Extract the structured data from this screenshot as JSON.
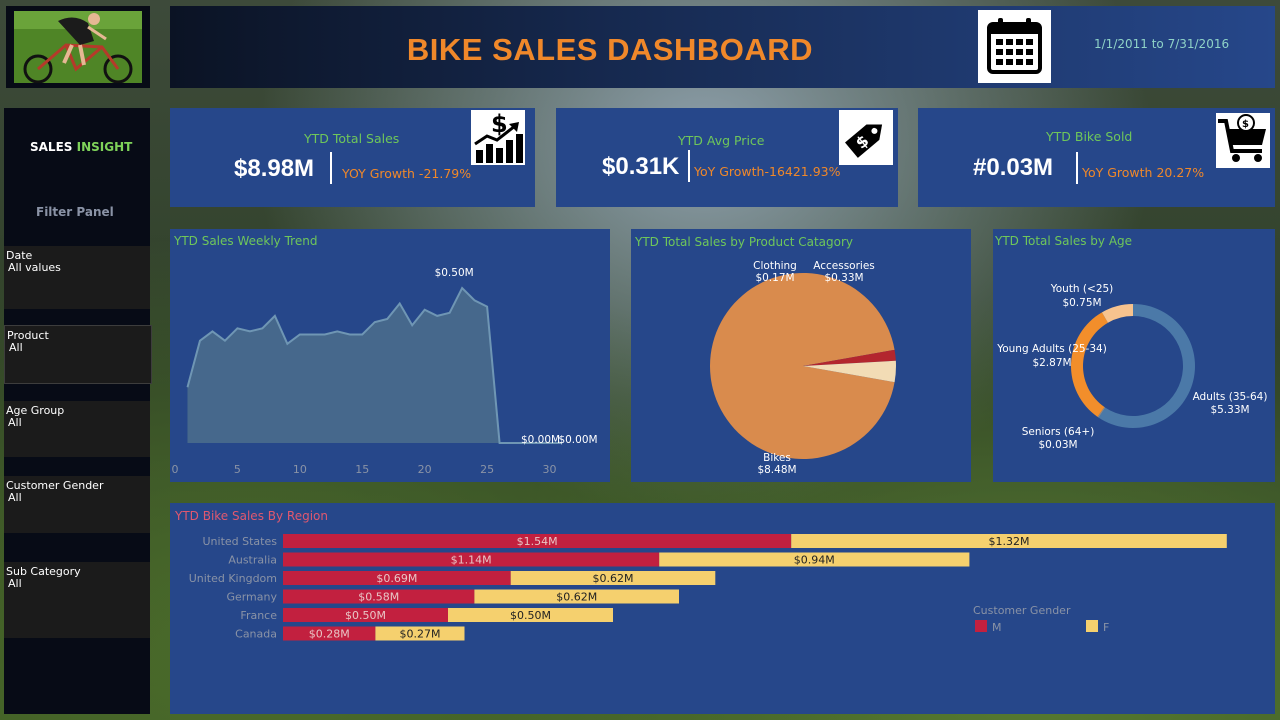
{
  "header": {
    "title": "BIKE SALES DASHBOARD",
    "date_range": "1/1/2011 to 7/31/2016"
  },
  "sidebar": {
    "insight_a": "SALES",
    "insight_b": "INSIGHT",
    "filter_panel": "Filter Panel",
    "filters": [
      {
        "label": "Date",
        "value": "All values"
      },
      {
        "label": "Product",
        "value": "All"
      },
      {
        "label": "Age Group",
        "value": "All"
      },
      {
        "label": "Customer Gender",
        "value": "All"
      },
      {
        "label": "Sub Category",
        "value": "All"
      }
    ]
  },
  "kpis": [
    {
      "title": "YTD Total Sales",
      "value": "$8.98M",
      "yoy": "YOY Growth -21.79%",
      "icon": "money-growth-icon"
    },
    {
      "title": "YTD Avg Price",
      "value": "$0.31K",
      "yoy": "YoY Growth-16421.93%",
      "icon": "price-tag-icon"
    },
    {
      "title": "YTD Bike Sold",
      "value": "#0.03M",
      "yoy": "YoY Growth 20.27%",
      "icon": "shopping-cart-icon"
    }
  ],
  "colors": {
    "accent_orange": "#f0882a",
    "title_green": "#6fc75a",
    "panel_blue": "#26478a",
    "male_red": "#c2203f",
    "female_yellow": "#f5d06e",
    "area_fill": "#4c6f8c",
    "pie_bikes": "#d98b4d",
    "pie_accessories": "#f2dcb5",
    "pie_clothing": "#b3262e",
    "donut_adults": "#4b79a8",
    "donut_young": "#f28e2b",
    "donut_youth": "#f7c38e",
    "donut_seniors": "#8a8a8a"
  },
  "chart_data": [
    {
      "type": "area",
      "title": "YTD Sales Weekly Trend",
      "x": [
        1,
        2,
        3,
        4,
        5,
        6,
        7,
        8,
        9,
        10,
        11,
        12,
        13,
        14,
        15,
        16,
        17,
        18,
        19,
        20,
        21,
        22,
        23,
        24,
        25,
        26,
        27,
        28,
        29,
        30,
        31
      ],
      "values": [
        0.18,
        0.33,
        0.36,
        0.33,
        0.37,
        0.36,
        0.37,
        0.41,
        0.32,
        0.35,
        0.35,
        0.35,
        0.36,
        0.35,
        0.35,
        0.39,
        0.4,
        0.45,
        0.38,
        0.43,
        0.41,
        0.42,
        0.5,
        0.46,
        0.44,
        0.0,
        0.0,
        0.0,
        0.0,
        0.0,
        0.0
      ],
      "xticks": [
        0,
        5,
        10,
        15,
        20,
        25,
        30
      ],
      "xlim": [
        0,
        31
      ],
      "ylim": [
        0,
        0.6
      ],
      "data_labels": [
        {
          "x": 23,
          "text": "$0.50M"
        },
        {
          "x": 28,
          "text": "$0.00M"
        },
        {
          "x": 31,
          "text": "$0.00M"
        }
      ]
    },
    {
      "type": "pie",
      "title": "YTD Total Sales by Product Catagory",
      "slices": [
        {
          "label": "Bikes",
          "value": 8.48,
          "text": "$8.48M"
        },
        {
          "label": "Clothing",
          "value": 0.17,
          "text": "$0.17M"
        },
        {
          "label": "Accessories",
          "value": 0.33,
          "text": "$0.33M"
        }
      ]
    },
    {
      "type": "pie",
      "subtype": "donut",
      "title": "YTD Total Sales by Age",
      "slices": [
        {
          "label": "Adults (35-64)",
          "value": 5.33,
          "text": "$5.33M"
        },
        {
          "label": "Seniors (64+)",
          "value": 0.03,
          "text": "$0.03M"
        },
        {
          "label": "Young Adults (25-34)",
          "value": 2.87,
          "text": "$2.87M"
        },
        {
          "label": "Youth (<25)",
          "value": 0.75,
          "text": "$0.75M"
        }
      ]
    },
    {
      "type": "bar",
      "orientation": "horizontal",
      "stacked": true,
      "title": "YTD Bike Sales By Region",
      "categories": [
        "United States",
        "Australia",
        "United Kingdom",
        "Germany",
        "France",
        "Canada"
      ],
      "series": [
        {
          "name": "M",
          "values": [
            1.54,
            1.14,
            0.69,
            0.58,
            0.5,
            0.28
          ],
          "labels": [
            "$1.54M",
            "$1.14M",
            "$0.69M",
            "$0.58M",
            "$0.50M",
            "$0.28M"
          ]
        },
        {
          "name": "F",
          "values": [
            1.32,
            0.94,
            0.62,
            0.62,
            0.5,
            0.27
          ],
          "labels": [
            "$1.32M",
            "$0.94M",
            "$0.62M",
            "$0.62M",
            "$0.50M",
            "$0.27M"
          ]
        }
      ],
      "legend_title": "Customer Gender",
      "legend_position": "bottom-right"
    }
  ]
}
